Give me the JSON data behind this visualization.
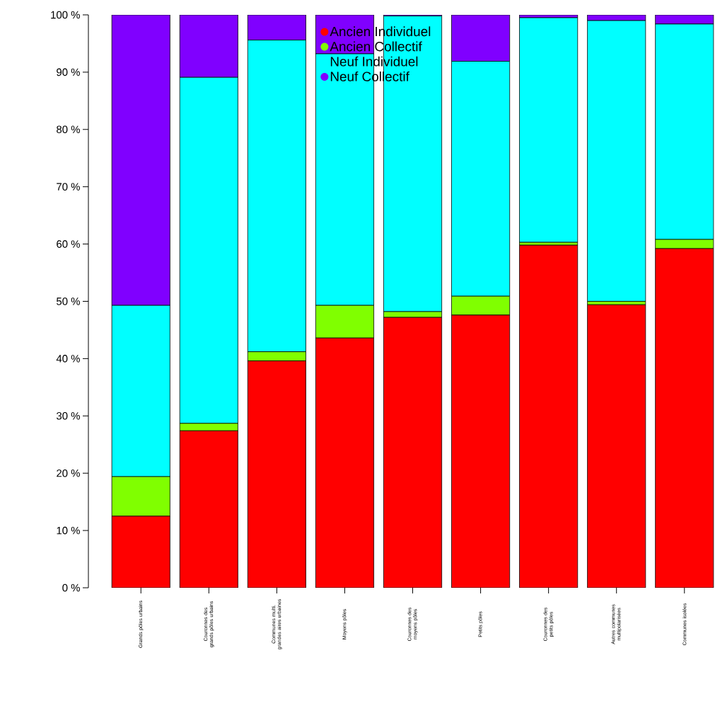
{
  "chart_data": {
    "type": "bar",
    "stacked": true,
    "categories": [
      "Grands pôles urbains",
      "Couronnes des grands pôles urbains",
      "Communes multi. grandes aires urbaines",
      "Moyens pôles",
      "Couronnes des moyens pôles",
      "Petits pôles",
      "Couronnes des petits pôles",
      "Autres communes multipolarisées",
      "Communes isolées"
    ],
    "series": [
      {
        "name": "Ancien Individuel",
        "color": "#ff0000",
        "values": [
          12.5,
          27.4,
          39.6,
          43.6,
          47.2,
          47.6,
          59.8,
          49.4,
          59.2
        ]
      },
      {
        "name": "Ancien Collectif",
        "color": "#80ff00",
        "values": [
          6.9,
          1.3,
          1.6,
          5.7,
          1.0,
          3.3,
          0.5,
          0.6,
          1.6
        ]
      },
      {
        "name": "Neuf Individuel",
        "color": "#00ffff",
        "values": [
          29.9,
          60.4,
          54.4,
          43.9,
          51.6,
          41.0,
          39.2,
          49.0,
          37.6
        ]
      },
      {
        "name": "Neuf Collectif",
        "color": "#8000ff",
        "values": [
          50.7,
          10.9,
          4.4,
          6.8,
          0.2,
          8.1,
          0.5,
          1.0,
          1.6
        ]
      }
    ],
    "ylim": [
      0,
      100
    ],
    "yticks": [
      {
        "value": 0,
        "label": "0 %"
      },
      {
        "value": 10,
        "label": "10 %"
      },
      {
        "value": 20,
        "label": "20 %"
      },
      {
        "value": 30,
        "label": "30 %"
      },
      {
        "value": 40,
        "label": "40 %"
      },
      {
        "value": 50,
        "label": "50 %"
      },
      {
        "value": 60,
        "label": "60 %"
      },
      {
        "value": 70,
        "label": "70 %"
      },
      {
        "value": 80,
        "label": "80 %"
      },
      {
        "value": 90,
        "label": "90 %"
      },
      {
        "value": 100,
        "label": "100 %"
      }
    ],
    "legend": "top",
    "grid": false
  }
}
